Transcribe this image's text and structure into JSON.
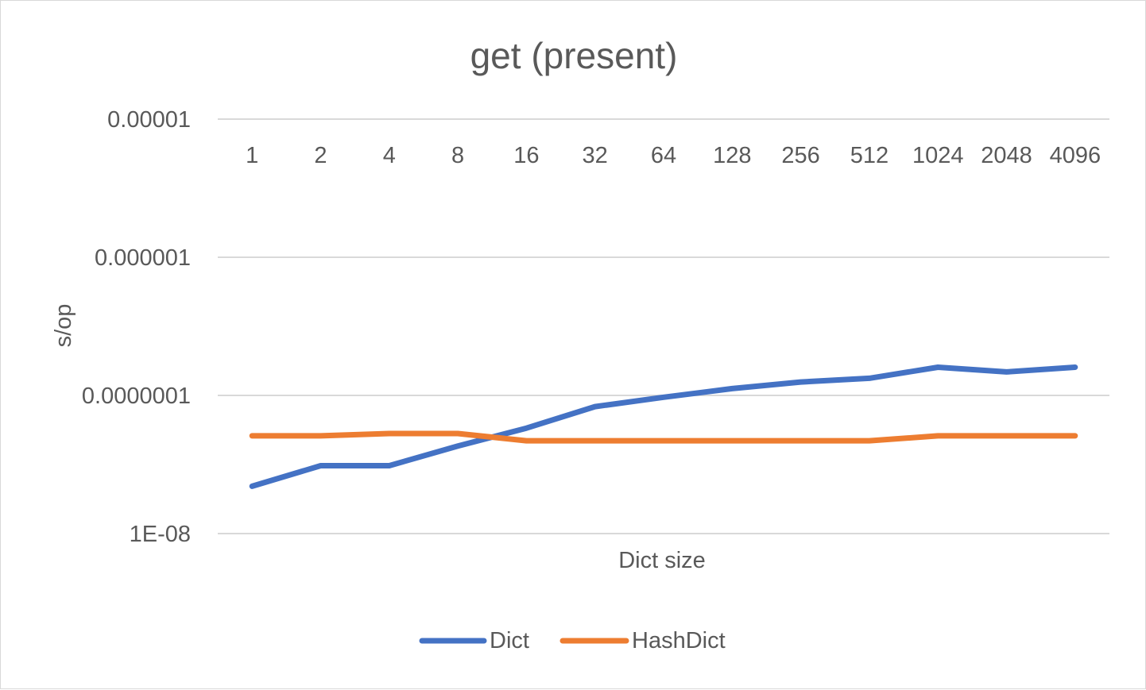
{
  "chart_data": {
    "type": "line",
    "title": "get (present)",
    "xlabel": "Dict size",
    "ylabel": "s/op",
    "y_scale": "log",
    "ylim": [
      1e-08,
      1e-05
    ],
    "y_ticks": [
      {
        "value": 1e-05,
        "label": "0.00001"
      },
      {
        "value": 1e-06,
        "label": "0.000001"
      },
      {
        "value": 1e-07,
        "label": "0.0000001"
      },
      {
        "value": 1e-08,
        "label": "1E-08"
      }
    ],
    "categories": [
      "1",
      "2",
      "4",
      "8",
      "16",
      "32",
      "64",
      "128",
      "256",
      "512",
      "1024",
      "2048",
      "4096"
    ],
    "grid": true,
    "legend_position": "bottom",
    "series": [
      {
        "name": "Dict",
        "color": "#4472c4",
        "values": [
          2.2e-08,
          3.1e-08,
          3.1e-08,
          4.3e-08,
          5.8e-08,
          8.3e-08,
          9.7e-08,
          1.12e-07,
          1.25e-07,
          1.33e-07,
          1.6e-07,
          1.48e-07,
          1.6e-07
        ]
      },
      {
        "name": "HashDict",
        "color": "#ed7d31",
        "values": [
          5.1e-08,
          5.1e-08,
          5.3e-08,
          5.3e-08,
          4.7e-08,
          4.7e-08,
          4.7e-08,
          4.7e-08,
          4.7e-08,
          4.7e-08,
          5.1e-08,
          5.1e-08,
          5.1e-08
        ]
      }
    ]
  }
}
